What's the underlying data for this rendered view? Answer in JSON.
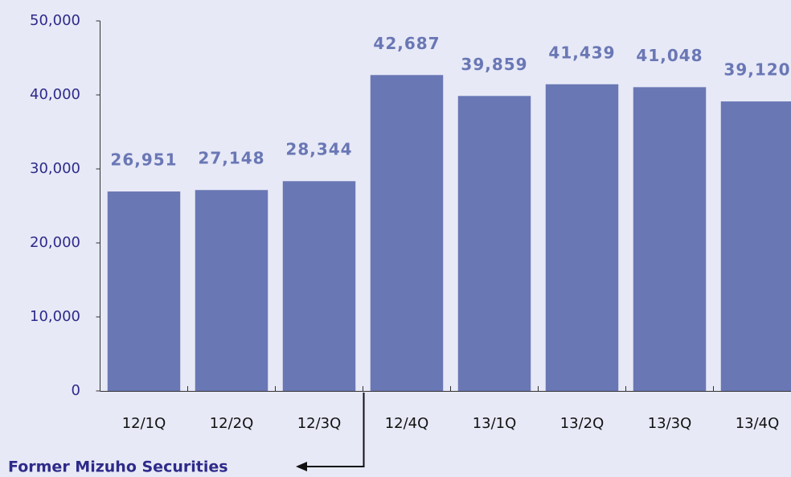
{
  "chart_data": {
    "type": "bar",
    "categories": [
      "12/1Q",
      "12/2Q",
      "12/3Q",
      "12/4Q",
      "13/1Q",
      "13/2Q",
      "13/3Q",
      "13/4Q"
    ],
    "values": [
      26951,
      27148,
      28344,
      42687,
      39859,
      41439,
      41048,
      39120
    ],
    "value_labels": [
      "26,951",
      "27,148",
      "28,344",
      "42,687",
      "39,859",
      "41,439",
      "41,048",
      "39,120"
    ],
    "color": "#6a77b5",
    "ylim": [
      0,
      50000
    ],
    "yticks": [
      0,
      {
        "value": 10000,
        "label": "10,000"
      },
      {
        "value": 20000,
        "label": "20,000"
      },
      {
        "value": 30000,
        "label": "30,000"
      },
      {
        "value": 40000,
        "label": "40,000"
      },
      {
        "value": 50000,
        "label": "50,000"
      }
    ],
    "grid": false,
    "annotation": "Former Mizuho Securities"
  }
}
